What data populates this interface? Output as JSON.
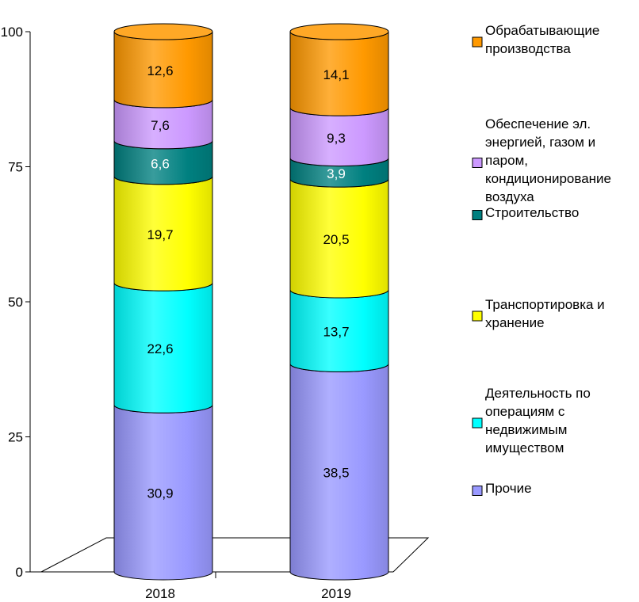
{
  "chart_data": {
    "type": "bar",
    "stacked": true,
    "style": "3d-cylinder",
    "categories": [
      "2018",
      "2019"
    ],
    "ylim": [
      0,
      100
    ],
    "yticks": [
      "0",
      "25",
      "50",
      "75",
      "100"
    ],
    "series": [
      {
        "name": "Прочие",
        "values": [
          30.9,
          38.5
        ],
        "labels": [
          "30,9",
          "38,5"
        ],
        "color": "#9999FF"
      },
      {
        "name": "Деятельность по операциям с недвижимым имуществом",
        "values": [
          22.6,
          13.7
        ],
        "labels": [
          "22,6",
          "13,7"
        ],
        "color": "#00FFFF"
      },
      {
        "name": "Транспортировка и хранение",
        "values": [
          19.7,
          20.5
        ],
        "labels": [
          "19,7",
          "20,5"
        ],
        "color": "#FFFF00"
      },
      {
        "name": "Строительство",
        "values": [
          6.6,
          3.9
        ],
        "labels": [
          "6,6",
          "3,9"
        ],
        "color": "#008080"
      },
      {
        "name": "Обеспечение эл. энергией, газом и паром, кондиционирование воздуха",
        "values": [
          7.6,
          9.3
        ],
        "labels": [
          "7,6",
          "9,3"
        ],
        "color": "#CC99FF"
      },
      {
        "name": "Обрабатывающие производства",
        "values": [
          12.6,
          14.1
        ],
        "labels": [
          "12,6",
          "14,1"
        ],
        "color": "#FF9900"
      }
    ],
    "legend": {
      "position": "right",
      "order": [
        5,
        4,
        3,
        2,
        1,
        0
      ],
      "lines": [
        [
          "Обрабатывающие",
          "производства"
        ],
        [
          "Обеспечение эл.",
          "энергией, газом и",
          "паром,",
          "кондиционирование",
          "воздуха"
        ],
        [
          "Строительство"
        ],
        [
          "Транспортировка и",
          "хранение"
        ],
        [
          "Деятельность по",
          "операциям с",
          "недвижимым",
          "имуществом"
        ],
        [
          "Прочие"
        ]
      ]
    },
    "grid": false
  }
}
